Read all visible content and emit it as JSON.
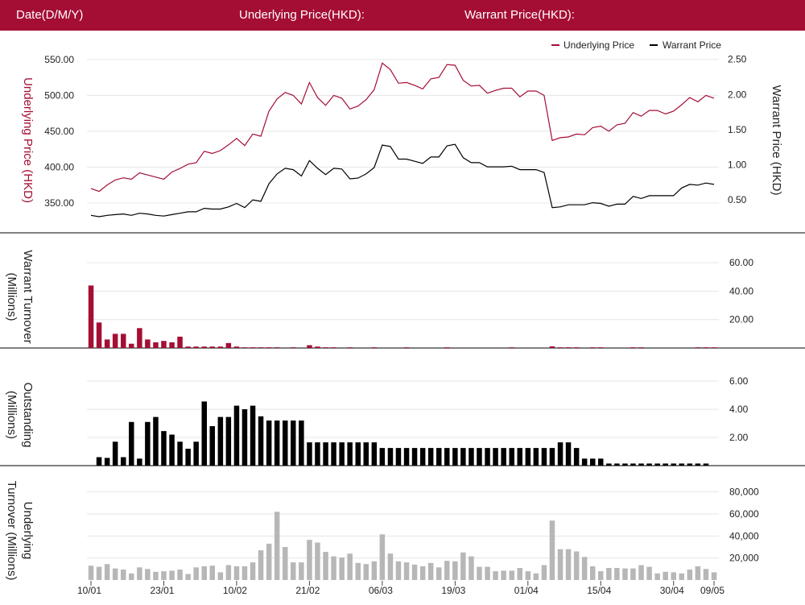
{
  "header": {
    "date_label": "Date(D/M/Y)",
    "date_value": "",
    "underlying_label": "Underlying Price(HKD):",
    "underlying_value": "",
    "warrant_label": "Warrant Price(HKD):",
    "warrant_value": ""
  },
  "colors": {
    "accent": "#a50e34",
    "underlying": "#a50e34",
    "warrant": "#000000",
    "turnover_bar": "#b7b7b7",
    "header_text": "#ffffff"
  },
  "chart_data": [
    {
      "type": "line",
      "legend": {
        "position": "top-right",
        "entries": [
          "Underlying Price",
          "Warrant Price"
        ]
      },
      "x_tick_labels": [
        "10/01",
        "23/01",
        "10/02",
        "21/02",
        "06/03",
        "19/03",
        "01/04",
        "15/04",
        "30/04",
        "09/05"
      ],
      "y_left": {
        "label": "Underlying Price (HKD)",
        "range": [
          315,
          560
        ],
        "ticks": [
          "350.00",
          "400.00",
          "450.00",
          "500.00",
          "550.00"
        ]
      },
      "y_right": {
        "label": "Warrant  Price (HKD)",
        "range": [
          0.1,
          2.6
        ],
        "ticks": [
          "0.50",
          "1.00",
          "1.50",
          "2.00",
          "2.50"
        ]
      },
      "series": [
        {
          "name": "Underlying Price",
          "axis": "left",
          "values": [
            370,
            366,
            375,
            382,
            385,
            383,
            392,
            389,
            386,
            383,
            393,
            398,
            404,
            406,
            422,
            419,
            423,
            431,
            440,
            430,
            446,
            443,
            478,
            495,
            504,
            500,
            488,
            518,
            497,
            486,
            500,
            496,
            481,
            485,
            494,
            508,
            545,
            536,
            517,
            518,
            514,
            509,
            523,
            525,
            543,
            542,
            521,
            513,
            514,
            503,
            507,
            510,
            510,
            498,
            506,
            506,
            500,
            437,
            441,
            442,
            446,
            445,
            455,
            457,
            450,
            459,
            461,
            476,
            471,
            479,
            479,
            474,
            478,
            487,
            497,
            491,
            500,
            496
          ]
        },
        {
          "name": "Warrant Price",
          "axis": "right",
          "values": [
            0.28,
            0.26,
            0.28,
            0.29,
            0.3,
            0.28,
            0.31,
            0.3,
            0.28,
            0.27,
            0.29,
            0.31,
            0.33,
            0.33,
            0.38,
            0.37,
            0.37,
            0.4,
            0.45,
            0.39,
            0.5,
            0.48,
            0.73,
            0.87,
            0.95,
            0.93,
            0.84,
            1.06,
            0.95,
            0.86,
            0.95,
            0.94,
            0.8,
            0.81,
            0.87,
            0.96,
            1.28,
            1.26,
            1.08,
            1.08,
            1.05,
            1.02,
            1.11,
            1.11,
            1.27,
            1.29,
            1.1,
            1.03,
            1.03,
            0.97,
            0.97,
            0.97,
            0.98,
            0.93,
            0.93,
            0.93,
            0.89,
            0.39,
            0.4,
            0.43,
            0.43,
            0.43,
            0.46,
            0.45,
            0.41,
            0.44,
            0.44,
            0.55,
            0.52,
            0.56,
            0.56,
            0.56,
            0.56,
            0.67,
            0.72,
            0.71,
            0.74,
            0.72
          ]
        }
      ]
    },
    {
      "type": "bar",
      "series": [
        {
          "name": "Warrant Turnover",
          "values": [
            44,
            18,
            6,
            10,
            10,
            3,
            14,
            6,
            4,
            5,
            4,
            8,
            1,
            1,
            1,
            1,
            1,
            3.5,
            1,
            0.5,
            0.5,
            0.5,
            0.5,
            0.5,
            0,
            0.5,
            0,
            2,
            1,
            0.5,
            0.5,
            0,
            0.5,
            0,
            0,
            0.5,
            0,
            0,
            0,
            0.5,
            0,
            0,
            0,
            0,
            0.5,
            0,
            0,
            0,
            0,
            0,
            0,
            0,
            0.5,
            0,
            0,
            0,
            0,
            1.2,
            0.5,
            0.5,
            0.5,
            0,
            0.5,
            0.5,
            0,
            0,
            0,
            0.5,
            0.5,
            0,
            0,
            0,
            0,
            0,
            0,
            0.5,
            0.5,
            0.5
          ]
        }
      ],
      "y_axis": {
        "label": "Warrant  Turnover (Millions)",
        "range": [
          0,
          72
        ],
        "ticks": [
          "20.00",
          "40.00",
          "60.00"
        ]
      }
    },
    {
      "type": "bar",
      "series": [
        {
          "name": "Outstanding",
          "values": [
            0,
            0.6,
            0.55,
            1.7,
            0.6,
            3.1,
            0.5,
            3.1,
            3.45,
            2.45,
            2.2,
            1.7,
            1.2,
            1.7,
            4.55,
            2.8,
            3.45,
            3.45,
            4.25,
            4.0,
            4.25,
            3.5,
            3.2,
            3.2,
            3.2,
            3.2,
            3.2,
            1.65,
            1.65,
            1.65,
            1.65,
            1.65,
            1.65,
            1.65,
            1.65,
            1.65,
            1.25,
            1.25,
            1.25,
            1.25,
            1.25,
            1.25,
            1.25,
            1.25,
            1.25,
            1.25,
            1.25,
            1.25,
            1.25,
            1.25,
            1.25,
            1.25,
            1.25,
            1.25,
            1.25,
            1.25,
            1.25,
            1.25,
            1.65,
            1.65,
            1.25,
            0.5,
            0.5,
            0.5,
            0.15,
            0.15,
            0.15,
            0.15,
            0.15,
            0.15,
            0.15,
            0.15,
            0.15,
            0.15,
            0.15,
            0.15,
            0.15,
            0
          ]
        }
      ],
      "y_axis": {
        "label": "Outstanding (Millions)",
        "range": [
          0,
          7.2
        ],
        "ticks": [
          "2.00",
          "4.00",
          "6.00"
        ]
      }
    },
    {
      "type": "bar",
      "series": [
        {
          "name": "Underlying Turnover",
          "values": [
            13000,
            12000,
            14500,
            10500,
            9500,
            6000,
            11500,
            10000,
            7500,
            8000,
            8500,
            9500,
            5500,
            11500,
            12500,
            13000,
            7000,
            13500,
            12500,
            12500,
            16000,
            27000,
            33000,
            62000,
            30000,
            16000,
            16000,
            36500,
            34000,
            25500,
            21500,
            20500,
            24000,
            15500,
            14500,
            17000,
            41500,
            24000,
            17000,
            16000,
            14000,
            12500,
            15500,
            11500,
            17500,
            17000,
            25000,
            21500,
            12000,
            12000,
            8000,
            8500,
            8500,
            11000,
            8000,
            6000,
            13500,
            54000,
            28000,
            28000,
            26000,
            21000,
            12500,
            8000,
            11000,
            11000,
            10500,
            10500,
            13500,
            12000,
            6000,
            7500,
            7000,
            6000,
            9500,
            12500,
            10000,
            7000
          ]
        }
      ],
      "y_axis": {
        "label": "Underlying Turnover (Millions)",
        "range": [
          0,
          90000
        ],
        "ticks": [
          "20,000",
          "40,000",
          "60,000",
          "80,000"
        ]
      }
    }
  ]
}
